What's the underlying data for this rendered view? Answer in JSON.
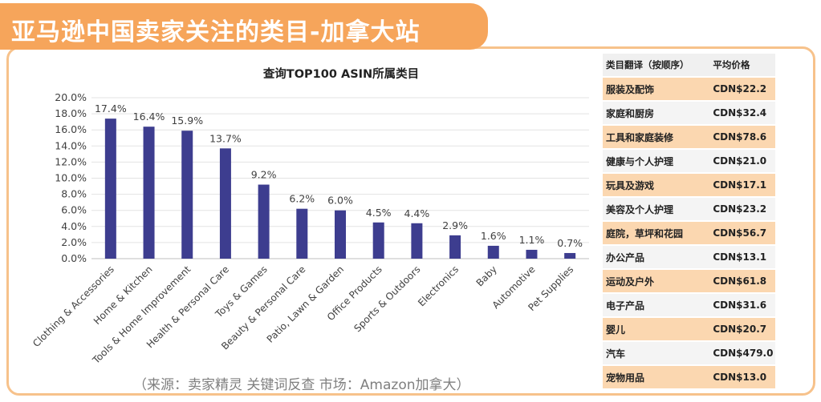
{
  "page_title": "亚马逊中国卖家关注的类目-加拿大站",
  "source_note": "（来源：卖家精灵 关键词反查     市场：Amazon加拿大）",
  "colors": {
    "accent": "#f6a55b",
    "bar": "#3d3d8f",
    "row_highlight": "#fbd7b0",
    "row_alt": "#f4f4f4"
  },
  "chart_data": {
    "type": "bar",
    "title": "查询TOP100 ASIN所属类目",
    "categories": [
      "Clothing & Accessories",
      "Home & Kitchen",
      "Tools & Home Improvement",
      "Health & Personal Care",
      "Toys & Games",
      "Beauty & Personal Care",
      "Patio, Lawn & Garden",
      "Office Products",
      "Sports & Outdoors",
      "Electronics",
      "Baby",
      "Automotive",
      "Pet Supplies"
    ],
    "values": [
      17.4,
      16.4,
      15.9,
      13.7,
      9.2,
      6.2,
      6.0,
      4.5,
      4.4,
      2.9,
      1.6,
      1.1,
      0.7
    ],
    "value_labels": [
      "17.4%",
      "16.4%",
      "15.9%",
      "13.7%",
      "9.2%",
      "6.2%",
      "6.0%",
      "4.5%",
      "4.4%",
      "2.9%",
      "1.6%",
      "1.1%",
      "0.7%"
    ],
    "y_ticks": [
      "0.0%",
      "2.0%",
      "4.0%",
      "6.0%",
      "8.0%",
      "10.0%",
      "12.0%",
      "14.0%",
      "16.0%",
      "18.0%",
      "20.0%"
    ],
    "ylim": [
      0,
      20
    ],
    "grid": true,
    "xlabel": "",
    "ylabel": ""
  },
  "price_table": {
    "headers": [
      "类目翻译（按顺序）",
      "平均价格"
    ],
    "rows": [
      [
        "服装及配饰",
        "CDN$22.2"
      ],
      [
        "家庭和厨房",
        "CDN$32.4"
      ],
      [
        "工具和家庭装修",
        "CDN$78.6"
      ],
      [
        "健康与个人护理",
        "CDN$21.0"
      ],
      [
        "玩具及游戏",
        "CDN$17.1"
      ],
      [
        "美容及个人护理",
        "CDN$23.2"
      ],
      [
        "庭院，草坪和花园",
        "CDN$56.7"
      ],
      [
        "办公产品",
        "CDN$13.1"
      ],
      [
        "运动及户外",
        "CDN$61.8"
      ],
      [
        "电子产品",
        "CDN$31.6"
      ],
      [
        "婴儿",
        "CDN$20.7"
      ],
      [
        "汽车",
        "CDN$479.0"
      ],
      [
        "宠物用品",
        "CDN$13.0"
      ]
    ]
  }
}
